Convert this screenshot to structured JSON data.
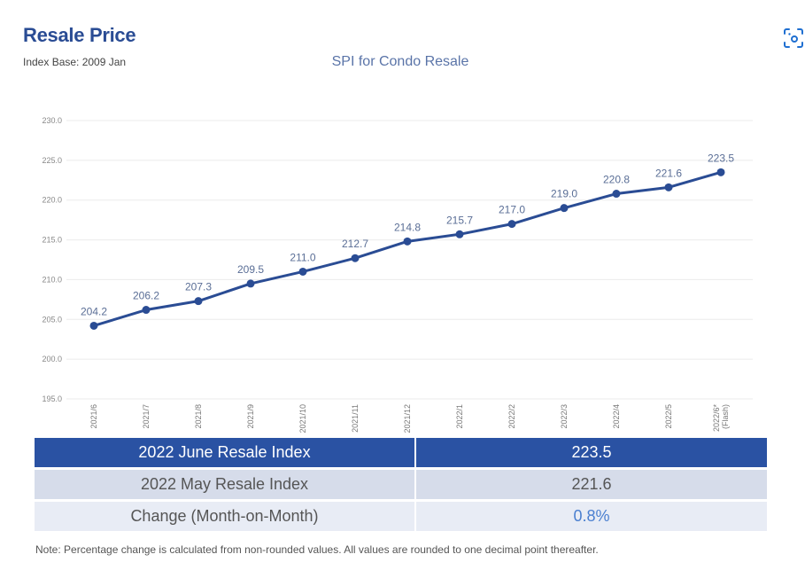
{
  "header": {
    "title": "Resale Price",
    "subtitle": "Index Base: 2009 Jan",
    "icon": "screenshot-lens-icon"
  },
  "colors": {
    "brand": "#2a4c94",
    "line": "#2a4c94",
    "table_header": "#2a52a3",
    "table_row2": "#d6dcea",
    "table_row3": "#e8ecf5",
    "change_value": "#4a7fd0"
  },
  "chart_data": {
    "type": "line",
    "title": "SPI for Condo Resale",
    "xlabel": "",
    "ylabel": "",
    "categories": [
      "2021/6",
      "2021/7",
      "2021/8",
      "2021/9",
      "2021/10",
      "2021/11",
      "2021/12",
      "2022/1",
      "2022/2",
      "2022/3",
      "2022/4",
      "2022/5",
      "2022/6*\n(Flash)"
    ],
    "series": [
      {
        "name": "SPI for Condo Resale",
        "values": [
          204.2,
          206.2,
          207.3,
          209.5,
          211.0,
          212.7,
          214.8,
          215.7,
          217.0,
          219.0,
          220.8,
          221.6,
          223.5
        ]
      }
    ],
    "data_labels": [
      "204.2",
      "206.2",
      "207.3",
      "209.5",
      "211.0",
      "212.7",
      "214.8",
      "215.7",
      "217.0",
      "219.0",
      "220.8",
      "221.6",
      "223.5"
    ],
    "yticks": [
      "195.0",
      "200.0",
      "205.0",
      "210.0",
      "215.0",
      "220.0",
      "225.0",
      "230.0"
    ],
    "ylim": [
      195,
      230
    ],
    "grid": true,
    "legend": "none"
  },
  "table": {
    "rows": [
      {
        "label": "2022 June Resale Index",
        "value": "223.5"
      },
      {
        "label": "2022 May Resale Index",
        "value": "221.6"
      },
      {
        "label": "Change (Month-on-Month)",
        "value": "0.8%"
      }
    ]
  },
  "note": "Note: Percentage change is calculated from non-rounded values.  All values are rounded to one decimal point thereafter."
}
